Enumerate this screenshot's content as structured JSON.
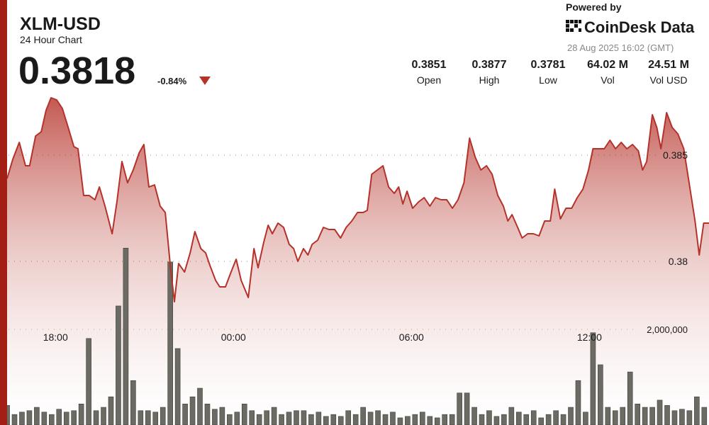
{
  "header": {
    "symbol": "XLM-USD",
    "subtitle": "24 Hour Chart",
    "price": "0.3818",
    "change": "-0.84%",
    "powered_by": "Powered by",
    "brand": "CoinDesk Data",
    "timestamp": "28 Aug 2025 16:02 (GMT)",
    "stats": [
      {
        "value": "0.3851",
        "label": "Open"
      },
      {
        "value": "0.3877",
        "label": "High"
      },
      {
        "value": "0.3781",
        "label": "Low"
      },
      {
        "value": "64.02 M",
        "label": "Vol"
      },
      {
        "value": "24.51 M",
        "label": "Vol USD"
      }
    ]
  },
  "chart_data": {
    "type": "line",
    "color": "#b5322b",
    "grid": true,
    "xlim": [
      16.13,
      40.03
    ],
    "xticks": [
      {
        "value": 18,
        "label": "18:00"
      },
      {
        "value": 24,
        "label": "00:00"
      },
      {
        "value": 30,
        "label": "06:00"
      },
      {
        "value": 36,
        "label": "12:00"
      }
    ],
    "ylim": [
      0.3723,
      0.3923
    ],
    "yticks": [
      0.38,
      0.385
    ],
    "x": [
      16.37,
      16.56,
      16.78,
      16.99,
      17.13,
      17.33,
      17.52,
      17.68,
      17.85,
      18.04,
      18.23,
      18.43,
      18.62,
      18.76,
      18.95,
      19.14,
      19.33,
      19.48,
      19.67,
      19.91,
      20.07,
      20.24,
      20.43,
      20.62,
      20.82,
      20.98,
      21.15,
      21.34,
      21.53,
      21.7,
      21.87,
      22.01,
      22.15,
      22.35,
      22.54,
      22.7,
      22.9,
      23.06,
      23.21,
      23.4,
      23.54,
      23.73,
      23.92,
      24.09,
      24.26,
      24.5,
      24.69,
      24.83,
      25.02,
      25.17,
      25.31,
      25.5,
      25.69,
      25.88,
      26.03,
      26.17,
      26.36,
      26.51,
      26.65,
      26.84,
      27.03,
      27.22,
      27.41,
      27.61,
      27.8,
      27.99,
      28.18,
      28.37,
      28.51,
      28.66,
      28.85,
      29.04,
      29.23,
      29.42,
      29.57,
      29.71,
      29.85,
      30.04,
      30.24,
      30.43,
      30.62,
      30.81,
      31.0,
      31.19,
      31.38,
      31.57,
      31.77,
      31.96,
      32.15,
      32.34,
      32.53,
      32.72,
      32.91,
      33.1,
      33.25,
      33.39,
      33.58,
      33.73,
      33.92,
      34.11,
      34.3,
      34.49,
      34.68,
      34.83,
      35.02,
      35.21,
      35.4,
      35.59,
      35.78,
      35.97,
      36.12,
      36.31,
      36.5,
      36.69,
      36.88,
      37.07,
      37.26,
      37.45,
      37.65,
      37.79,
      37.93,
      38.12,
      38.27,
      38.41,
      38.6,
      38.79,
      38.98,
      39.18,
      39.37,
      39.56,
      39.7,
      39.85,
      40.04
    ],
    "values": [
      0.3839,
      0.3848,
      0.3856,
      0.3845,
      0.3845,
      0.3859,
      0.3861,
      0.3871,
      0.3877,
      0.3876,
      0.3872,
      0.3863,
      0.3854,
      0.3853,
      0.3831,
      0.3831,
      0.3829,
      0.3835,
      0.3826,
      0.3813,
      0.3828,
      0.3847,
      0.3837,
      0.3843,
      0.3851,
      0.3855,
      0.3835,
      0.3836,
      0.3826,
      0.3823,
      0.3798,
      0.3781,
      0.3799,
      0.3795,
      0.3804,
      0.3814,
      0.3806,
      0.3804,
      0.3798,
      0.3791,
      0.3788,
      0.3788,
      0.3795,
      0.3801,
      0.3791,
      0.3783,
      0.3806,
      0.3797,
      0.3809,
      0.3817,
      0.3813,
      0.3818,
      0.3816,
      0.3808,
      0.3806,
      0.38,
      0.3806,
      0.3803,
      0.3808,
      0.381,
      0.3816,
      0.3815,
      0.3815,
      0.3811,
      0.3816,
      0.3819,
      0.3823,
      0.3823,
      0.3824,
      0.3841,
      0.3843,
      0.3845,
      0.3835,
      0.3832,
      0.3835,
      0.3827,
      0.3833,
      0.3825,
      0.3828,
      0.383,
      0.3826,
      0.383,
      0.3829,
      0.3829,
      0.3825,
      0.3829,
      0.3837,
      0.3858,
      0.3849,
      0.3843,
      0.3845,
      0.3841,
      0.3831,
      0.3826,
      0.3819,
      0.3822,
      0.3816,
      0.3811,
      0.3813,
      0.3813,
      0.3812,
      0.3819,
      0.3819,
      0.3834,
      0.382,
      0.3825,
      0.3825,
      0.383,
      0.3834,
      0.3843,
      0.3853,
      0.3853,
      0.3853,
      0.3857,
      0.3853,
      0.3856,
      0.3853,
      0.3855,
      0.3852,
      0.3843,
      0.3847,
      0.3869,
      0.3863,
      0.3853,
      0.387,
      0.3863,
      0.386,
      0.3853,
      0.3836,
      0.3819,
      0.3803,
      0.3818,
      0.3818
    ],
    "volume": {
      "type": "bar",
      "color": "#6b6b63",
      "y2lim": [
        0,
        8890000
      ],
      "y2ticks": [
        {
          "value": 2000000,
          "label": "2,000,000"
        }
      ],
      "x": [
        16.37,
        16.62,
        16.87,
        17.12,
        17.37,
        17.62,
        17.87,
        18.12,
        18.37,
        18.62,
        18.87,
        19.12,
        19.37,
        19.62,
        19.87,
        20.12,
        20.37,
        20.62,
        20.87,
        21.12,
        21.37,
        21.62,
        21.87,
        22.12,
        22.37,
        22.62,
        22.87,
        23.12,
        23.37,
        23.62,
        23.87,
        24.12,
        24.37,
        24.62,
        24.87,
        25.12,
        25.37,
        25.62,
        25.87,
        26.12,
        26.37,
        26.62,
        26.87,
        27.12,
        27.37,
        27.62,
        27.87,
        28.12,
        28.37,
        28.62,
        28.87,
        29.12,
        29.37,
        29.62,
        29.87,
        30.12,
        30.37,
        30.62,
        30.87,
        31.12,
        31.37,
        31.62,
        31.87,
        32.12,
        32.37,
        32.62,
        32.87,
        33.12,
        33.37,
        33.62,
        33.87,
        34.12,
        34.37,
        34.62,
        34.87,
        35.12,
        35.37,
        35.62,
        35.87,
        36.12,
        36.37,
        36.62,
        36.87,
        37.12,
        37.37,
        37.62,
        37.87,
        38.12,
        38.37,
        38.62,
        38.87,
        39.12,
        39.37,
        39.62,
        39.87
      ],
      "values": [
        410000,
        220000,
        270000,
        300000,
        370000,
        270000,
        220000,
        330000,
        270000,
        300000,
        440000,
        1810000,
        300000,
        370000,
        590000,
        2490000,
        3700000,
        930000,
        300000,
        300000,
        270000,
        370000,
        3410000,
        1600000,
        440000,
        590000,
        770000,
        440000,
        330000,
        370000,
        220000,
        270000,
        440000,
        300000,
        220000,
        300000,
        370000,
        220000,
        270000,
        300000,
        300000,
        220000,
        270000,
        180000,
        220000,
        180000,
        300000,
        220000,
        370000,
        270000,
        300000,
        220000,
        270000,
        150000,
        180000,
        220000,
        270000,
        180000,
        150000,
        220000,
        220000,
        670000,
        670000,
        370000,
        220000,
        300000,
        180000,
        220000,
        370000,
        270000,
        220000,
        300000,
        150000,
        220000,
        300000,
        220000,
        370000,
        930000,
        270000,
        1930000,
        1260000,
        370000,
        300000,
        370000,
        1110000,
        440000,
        370000,
        370000,
        520000,
        410000,
        300000,
        330000,
        300000,
        590000,
        370000
      ]
    }
  }
}
